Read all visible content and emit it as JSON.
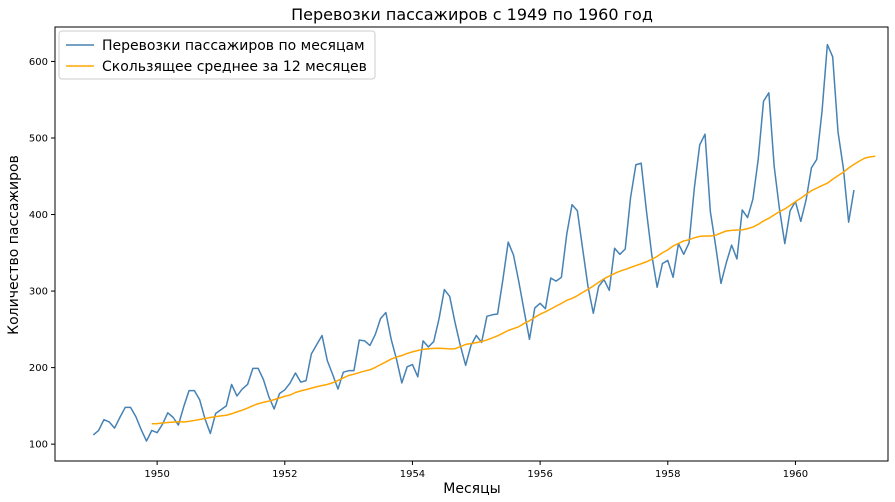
{
  "chart_data": {
    "type": "line",
    "title": "Перевозки пассажиров с 1949 по 1960 год",
    "xlabel": "Месяцы",
    "ylabel": "Количество пассажиров",
    "xlim": [
      1948.4,
      1961.45
    ],
    "ylim": [
      78,
      645
    ],
    "x_ticks": [
      1950,
      1952,
      1954,
      1956,
      1958,
      1960
    ],
    "y_ticks": [
      100,
      200,
      300,
      400,
      500,
      600
    ],
    "grid": false,
    "legend_position": "top-left",
    "x_start": 1949.0,
    "x_step": 0.0833333,
    "series": [
      {
        "name": "Перевозки пассажиров по месяцам",
        "color": "#4682b4",
        "values": [
          112,
          118,
          132,
          129,
          121,
          135,
          148,
          148,
          136,
          119,
          104,
          118,
          115,
          126,
          141,
          135,
          125,
          149,
          170,
          170,
          158,
          133,
          114,
          140,
          145,
          150,
          178,
          163,
          172,
          178,
          199,
          199,
          184,
          162,
          146,
          166,
          171,
          180,
          193,
          181,
          183,
          218,
          230,
          242,
          209,
          191,
          172,
          194,
          196,
          196,
          236,
          235,
          229,
          243,
          264,
          272,
          237,
          211,
          180,
          201,
          204,
          188,
          235,
          227,
          234,
          264,
          302,
          293,
          259,
          229,
          203,
          229,
          242,
          233,
          267,
          269,
          270,
          315,
          364,
          347,
          312,
          274,
          237,
          278,
          284,
          277,
          317,
          313,
          318,
          374,
          413,
          405,
          355,
          306,
          271,
          306,
          315,
          301,
          356,
          348,
          355,
          422,
          465,
          467,
          404,
          347,
          305,
          336,
          340,
          318,
          362,
          348,
          363,
          435,
          491,
          505,
          404,
          359,
          310,
          337,
          360,
          342,
          406,
          396,
          420,
          472,
          548,
          559,
          463,
          407,
          362,
          405,
          417,
          391,
          419,
          461,
          472,
          535,
          622,
          606,
          508,
          461,
          390,
          432
        ]
      },
      {
        "name": "Скользящее среднее за 12 месяцев",
        "color": "#ffa500",
        "x_start": 1949.9167,
        "values": [
          126.7,
          126.9,
          127.6,
          128.3,
          128.8,
          129.2,
          129.0,
          129.8,
          131.0,
          132.2,
          133.5,
          134.9,
          136.0,
          137.0,
          137.8,
          139.7,
          142.2,
          144.4,
          147.2,
          150.3,
          152.8,
          154.7,
          156.2,
          158.2,
          160.3,
          162.6,
          164.2,
          167.5,
          169.6,
          171.3,
          173.2,
          175.0,
          176.6,
          178.0,
          180.2,
          183.2,
          186.5,
          189.7,
          191.4,
          193.5,
          195.5,
          197.2,
          200.3,
          203.9,
          207.4,
          211.2,
          213.8,
          215.8,
          218.5,
          220.6,
          222.4,
          223.9,
          224.7,
          225.2,
          225.3,
          225.0,
          224.4,
          224.7,
          227.4,
          230.3,
          231.4,
          232.6,
          234.1,
          236.2,
          238.8,
          241.5,
          245.0,
          248.5,
          251.0,
          253.5,
          257.7,
          261.2,
          265.7,
          269.8,
          272.9,
          276.6,
          280.3,
          283.9,
          287.9,
          290.4,
          294.0,
          298.3,
          302.3,
          306.7,
          311.3,
          316.0,
          319.6,
          323.0,
          326.0,
          328.3,
          330.9,
          333.3,
          335.7,
          338.3,
          341.5,
          345.3,
          350.1,
          353.8,
          358.9,
          362.3,
          365.5,
          367.1,
          369.6,
          371.5,
          372.0,
          371.9,
          373.0,
          376.0,
          378.5,
          379.3,
          379.8,
          380.0,
          381.6,
          383.6,
          387.2,
          391.6,
          395.0,
          399.6,
          403.8,
          407.3,
          412.0,
          416.8,
          421.2,
          426.3,
          431.1,
          434.5,
          437.9,
          440.9,
          446.1,
          450.8,
          455.2,
          460.8,
          465.5,
          469.8,
          473.5,
          475.4,
          476.2
        ]
      }
    ]
  }
}
